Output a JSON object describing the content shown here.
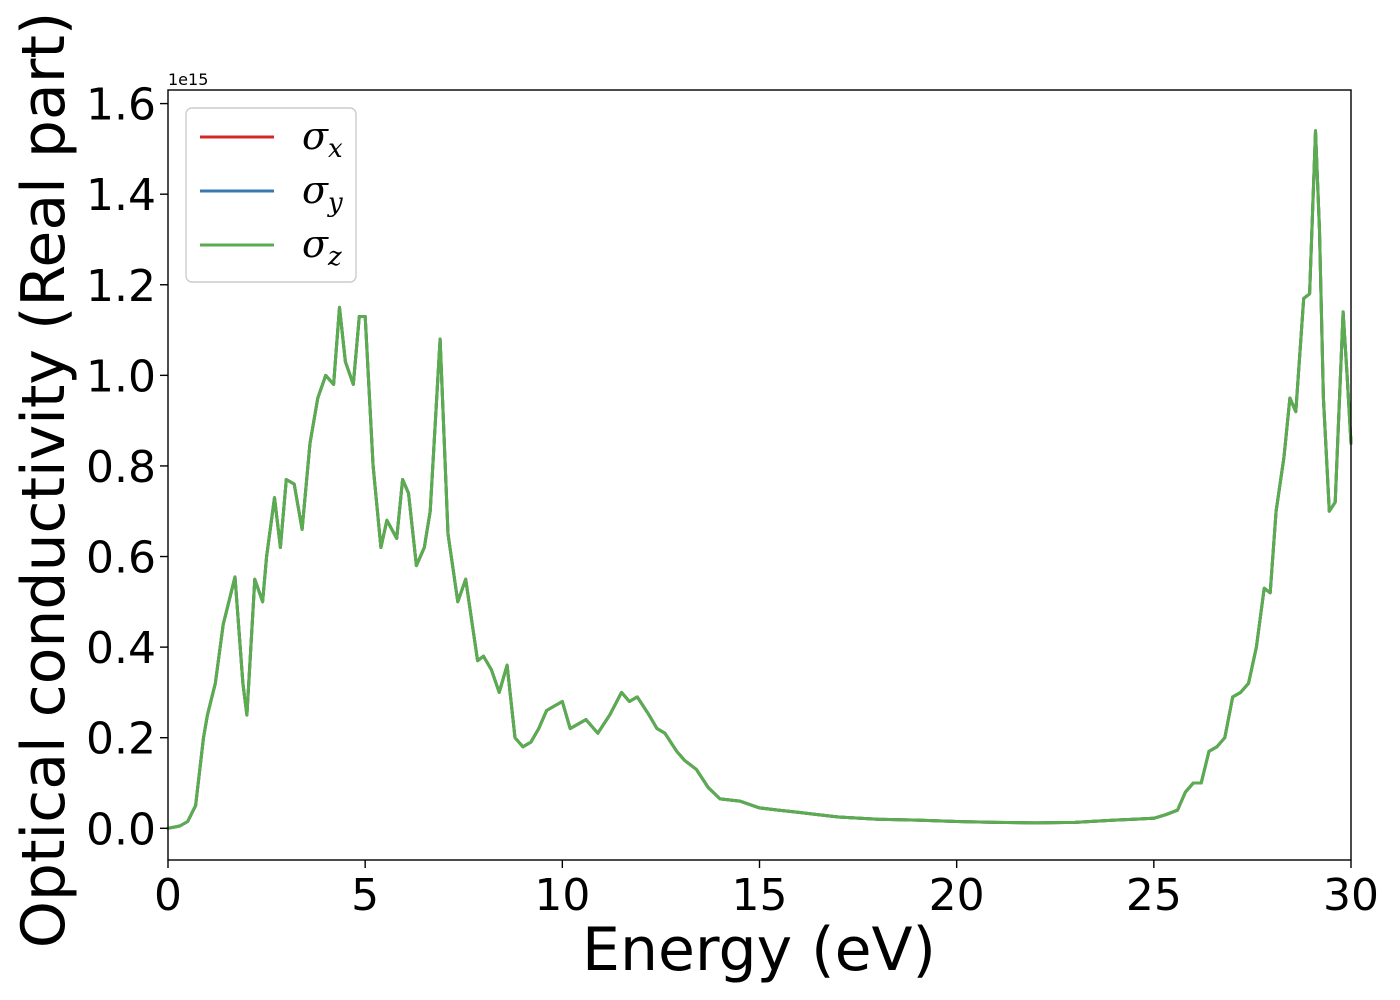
{
  "chart_data": {
    "type": "line",
    "title": "",
    "xlabel": "Energy (eV)",
    "ylabel": "Optical conductivity (Real part)",
    "y_offset_text": "1e15",
    "xlim": [
      0,
      30
    ],
    "ylim": [
      -0.07,
      1.63
    ],
    "xticks": [
      0,
      5,
      10,
      15,
      20,
      25,
      30
    ],
    "xtick_labels": [
      "0",
      "5",
      "10",
      "15",
      "20",
      "25",
      "30"
    ],
    "yticks": [
      0.0,
      0.2,
      0.4,
      0.6,
      0.8,
      1.0,
      1.2,
      1.4,
      1.6
    ],
    "ytick_labels": [
      "0.0",
      "0.2",
      "0.4",
      "0.6",
      "0.8",
      "1.0",
      "1.2",
      "1.4",
      "1.6"
    ],
    "grid": false,
    "legend_position": "upper-left",
    "colors": {
      "sigma_x": "#d62728",
      "sigma_y": "#3a78b0",
      "sigma_z": "#5aad4e"
    },
    "series": [
      {
        "name": "σx",
        "symbol": "σ",
        "sub": "x",
        "color": "#d62728"
      },
      {
        "name": "σy",
        "symbol": "σ",
        "sub": "y",
        "color": "#3a78b0"
      },
      {
        "name": "σz",
        "symbol": "σ",
        "sub": "z",
        "color": "#5aad4e"
      }
    ],
    "x": [
      0,
      0.3,
      0.5,
      0.7,
      0.9,
      1.0,
      1.2,
      1.4,
      1.6,
      1.7,
      1.9,
      2.0,
      2.2,
      2.4,
      2.5,
      2.7,
      2.85,
      3.0,
      3.2,
      3.4,
      3.6,
      3.8,
      4.0,
      4.2,
      4.35,
      4.5,
      4.7,
      4.85,
      5.0,
      5.2,
      5.4,
      5.55,
      5.8,
      5.95,
      6.1,
      6.3,
      6.5,
      6.65,
      6.9,
      7.1,
      7.35,
      7.55,
      7.7,
      7.85,
      8.0,
      8.2,
      8.4,
      8.6,
      8.8,
      9.0,
      9.2,
      9.4,
      9.6,
      9.8,
      10.0,
      10.2,
      10.4,
      10.6,
      10.9,
      11.2,
      11.5,
      11.7,
      11.9,
      12.2,
      12.4,
      12.6,
      12.9,
      13.1,
      13.4,
      13.7,
      14.0,
      14.5,
      15.0,
      15.5,
      16.0,
      16.5,
      17.0,
      18.0,
      19.0,
      20.0,
      21.0,
      22.0,
      23.0,
      24.0,
      24.5,
      25.0,
      25.3,
      25.6,
      25.8,
      26.0,
      26.2,
      26.4,
      26.6,
      26.8,
      27.0,
      27.2,
      27.4,
      27.6,
      27.8,
      27.95,
      28.1,
      28.3,
      28.45,
      28.6,
      28.8,
      28.95,
      29.1,
      29.2,
      29.3,
      29.45,
      29.6,
      29.8,
      29.9,
      30.0
    ],
    "y": [
      0.0,
      0.005,
      0.015,
      0.05,
      0.2,
      0.25,
      0.32,
      0.45,
      0.52,
      0.555,
      0.32,
      0.25,
      0.55,
      0.5,
      0.6,
      0.73,
      0.62,
      0.77,
      0.76,
      0.66,
      0.85,
      0.95,
      1.0,
      0.98,
      1.15,
      1.03,
      0.98,
      1.13,
      1.13,
      0.8,
      0.62,
      0.68,
      0.64,
      0.77,
      0.74,
      0.58,
      0.62,
      0.7,
      1.08,
      0.65,
      0.5,
      0.55,
      0.46,
      0.37,
      0.38,
      0.35,
      0.3,
      0.36,
      0.2,
      0.18,
      0.19,
      0.22,
      0.26,
      0.27,
      0.28,
      0.22,
      0.23,
      0.24,
      0.21,
      0.25,
      0.3,
      0.28,
      0.29,
      0.25,
      0.22,
      0.21,
      0.17,
      0.15,
      0.13,
      0.09,
      0.065,
      0.06,
      0.045,
      0.04,
      0.035,
      0.03,
      0.025,
      0.02,
      0.018,
      0.015,
      0.013,
      0.012,
      0.013,
      0.018,
      0.02,
      0.022,
      0.03,
      0.04,
      0.08,
      0.1,
      0.1,
      0.17,
      0.18,
      0.2,
      0.29,
      0.3,
      0.32,
      0.4,
      0.53,
      0.52,
      0.7,
      0.82,
      0.95,
      0.92,
      1.17,
      1.18,
      1.54,
      1.32,
      0.95,
      0.7,
      0.72,
      1.14,
      1.0,
      0.85
    ]
  }
}
